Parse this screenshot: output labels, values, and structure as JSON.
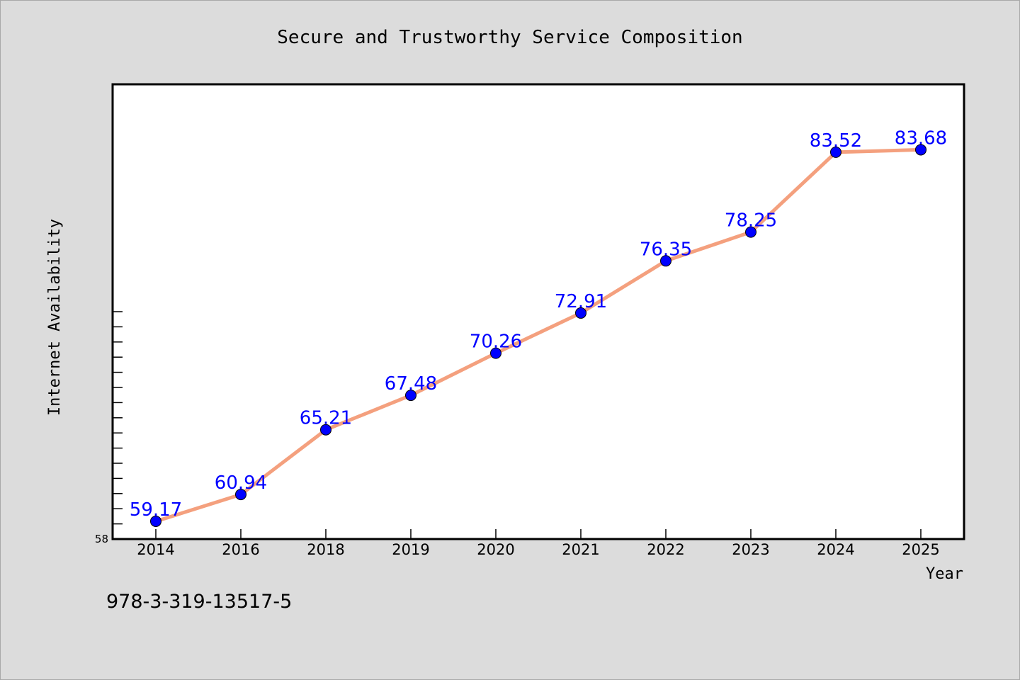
{
  "chart_data": {
    "type": "line",
    "title": "Secure and Trustworthy Service Composition",
    "xlabel": "Year",
    "ylabel": "Internet Availability",
    "categories": [
      "2014",
      "2016",
      "2018",
      "2019",
      "2020",
      "2021",
      "2022",
      "2023",
      "2024",
      "2025"
    ],
    "series": [
      {
        "values": [
          59.17,
          60.94,
          65.21,
          67.48,
          70.26,
          72.91,
          76.35,
          78.25,
          83.52,
          83.68
        ],
        "labels": [
          "59.17",
          "60.94",
          "65.21",
          "67.48",
          "70.26",
          "72.91",
          "76.35",
          "78.25",
          "83.52",
          "83.68"
        ]
      }
    ],
    "ylim": [
      58,
      88
    ],
    "y_tick_labels": [
      "58"
    ],
    "grid": false,
    "legend": "none",
    "colors": {
      "line": "#f4a07e",
      "marker": "#0000ff",
      "data_label": "#0000ff",
      "plot_background": "#ffffff",
      "page_background": "#dcdcdc"
    }
  },
  "footer": {
    "isbn": "978-3-319-13517-5"
  }
}
